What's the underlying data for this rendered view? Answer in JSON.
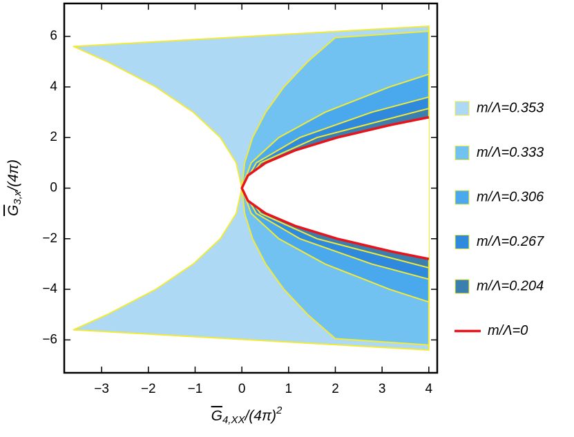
{
  "chart_data": {
    "type": "area",
    "xlabel": {
      "base": "G",
      "sub": "4,XX",
      "rest": "/(4π)",
      "sup": "2"
    },
    "ylabel": {
      "base": "G",
      "sub": "3,x",
      "rest": "/(4π)"
    },
    "xlim": [
      -3.8,
      4.18
    ],
    "ylim": [
      -7.3,
      7.3
    ],
    "xticks": [
      {
        "value": -3,
        "label": "−3"
      },
      {
        "value": -2,
        "label": "−2"
      },
      {
        "value": -1,
        "label": "−1"
      },
      0,
      1,
      2,
      3,
      4
    ],
    "yticks": [
      {
        "value": -6,
        "label": "−6"
      },
      {
        "value": -4,
        "label": "−4"
      },
      {
        "value": -2,
        "label": "−2"
      },
      0,
      2,
      4,
      6
    ],
    "edge_color": "#f2ea3a",
    "series": [
      {
        "name": "m/Λ=0.353",
        "color": "#aed9f5",
        "style": "area",
        "x": [
          -3.6,
          4,
          4,
          -3.6,
          -2.88,
          -1.84,
          -1.04,
          -0.46,
          -0.12,
          0,
          -0.12,
          -0.46,
          -1.04,
          -1.84,
          -2.88
        ],
        "y": [
          5.6,
          6.4,
          -6.4,
          -5.6,
          -5,
          -4,
          -3,
          -2,
          -1,
          0,
          1,
          2,
          3,
          4,
          5
        ]
      },
      {
        "name": "m/Λ=0.333",
        "color": "#72c2f1",
        "style": "area",
        "x": [
          0,
          0.06,
          0.23,
          0.51,
          0.9,
          1.41,
          2,
          4,
          4,
          2,
          1.41,
          0.9,
          0.51,
          0.23,
          0.06
        ],
        "y": [
          0,
          1,
          2,
          3,
          4,
          5,
          5.95,
          6.2,
          -6.2,
          -5.95,
          -5,
          -4,
          -3,
          -2,
          -1
        ]
      },
      {
        "name": "m/Λ=0.306",
        "color": "#4aa9ec",
        "style": "area",
        "x": [
          0,
          0.2,
          0.79,
          1.78,
          3.16,
          4,
          4,
          3.16,
          1.78,
          0.79,
          0.2
        ],
        "y": [
          0,
          1,
          2,
          3,
          4,
          4.5,
          -4.5,
          -4,
          -3,
          -2,
          -1
        ]
      },
      {
        "name": "m/Λ=0.267",
        "color": "#2f8ade",
        "style": "area",
        "x": [
          0,
          0.31,
          1.24,
          2.78,
          4,
          4,
          2.78,
          1.24,
          0.31
        ],
        "y": [
          0,
          1,
          2,
          3,
          3.6,
          -3.6,
          -3,
          -2,
          -1
        ]
      },
      {
        "name": "m/Λ=0.204",
        "color": "#3b7fae",
        "style": "area",
        "x": [
          0,
          0.4,
          1.61,
          4,
          4,
          1.61,
          0.4
        ],
        "y": [
          0,
          1,
          2,
          3.15,
          -3.15,
          -2,
          -1
        ]
      },
      {
        "name": "m/Λ=0",
        "color": "#e8141b",
        "style": "line",
        "x": [
          4,
          3.19,
          2.04,
          1.15,
          0.51,
          0.13,
          0,
          0.13,
          0.51,
          1.15,
          2.04,
          3.19,
          4
        ],
        "y": [
          -2.8,
          -2.5,
          -2,
          -1.5,
          -1,
          -0.5,
          0,
          0.5,
          1,
          1.5,
          2,
          2.5,
          2.8
        ]
      }
    ]
  }
}
